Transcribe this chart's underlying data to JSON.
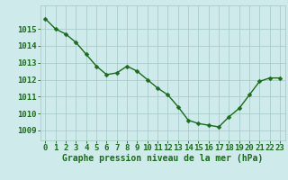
{
  "x": [
    0,
    1,
    2,
    3,
    4,
    5,
    6,
    7,
    8,
    9,
    10,
    11,
    12,
    13,
    14,
    15,
    16,
    17,
    18,
    19,
    20,
    21,
    22,
    23
  ],
  "y": [
    1015.6,
    1015.0,
    1014.7,
    1014.2,
    1013.5,
    1012.8,
    1012.3,
    1012.4,
    1012.8,
    1012.5,
    1012.0,
    1011.5,
    1011.1,
    1010.4,
    1009.6,
    1009.4,
    1009.3,
    1009.2,
    1009.8,
    1010.3,
    1011.1,
    1011.9,
    1012.1,
    1012.1
  ],
  "line_color": "#1a6b1a",
  "marker": "D",
  "markersize": 2.5,
  "linewidth": 1.0,
  "bg_color": "#ceeaea",
  "grid_color": "#a8cccc",
  "xlabel": "Graphe pression niveau de la mer (hPa)",
  "xlabel_fontsize": 7,
  "xlabel_color": "#1a6b1a",
  "ytick_values": [
    1009,
    1010,
    1011,
    1012,
    1013,
    1014,
    1015
  ],
  "ylim": [
    1008.4,
    1016.4
  ],
  "xlim": [
    -0.5,
    23.5
  ],
  "tick_color": "#1a6b1a",
  "tick_fontsize": 6.5,
  "xtick_labels": [
    "0",
    "1",
    "2",
    "3",
    "4",
    "5",
    "6",
    "7",
    "8",
    "9",
    "10",
    "11",
    "12",
    "13",
    "14",
    "15",
    "16",
    "17",
    "18",
    "19",
    "20",
    "21",
    "22",
    "23"
  ]
}
